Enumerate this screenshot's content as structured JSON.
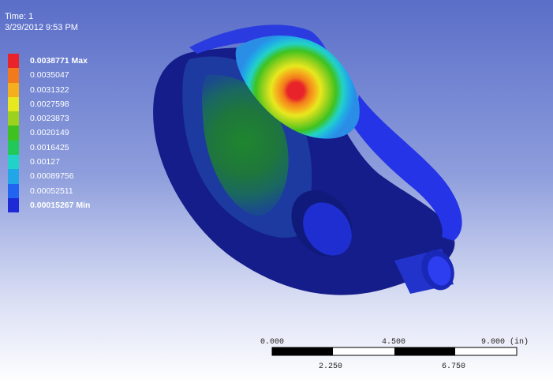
{
  "header": {
    "time_label": "Time: 1",
    "timestamp": "3/29/2012 9:53 PM"
  },
  "legend": {
    "items": [
      {
        "label": "0.0038771 Max",
        "color": "#e8242a",
        "bold": true
      },
      {
        "label": "0.0035047",
        "color": "#f27a1c",
        "bold": false
      },
      {
        "label": "0.0031322",
        "color": "#f5ae1c",
        "bold": false
      },
      {
        "label": "0.0027598",
        "color": "#e8e81e",
        "bold": false
      },
      {
        "label": "0.0023873",
        "color": "#9ad21e",
        "bold": false
      },
      {
        "label": "0.0020149",
        "color": "#3fc21f",
        "bold": false
      },
      {
        "label": "0.0016425",
        "color": "#22c85a",
        "bold": false
      },
      {
        "label": "0.00127",
        "color": "#22d2c8",
        "bold": false
      },
      {
        "label": "0.00089756",
        "color": "#21a6e8",
        "bold": false
      },
      {
        "label": "0.00052511",
        "color": "#2064f0",
        "bold": false
      },
      {
        "label": "0.00015267 Min",
        "color": "#1e2ad6",
        "bold": true
      }
    ]
  },
  "scale": {
    "label_0": "0.000",
    "label_mid": "4.500",
    "label_end": "9.000 (in)",
    "label_q1": "2.250",
    "label_q3": "6.750"
  }
}
